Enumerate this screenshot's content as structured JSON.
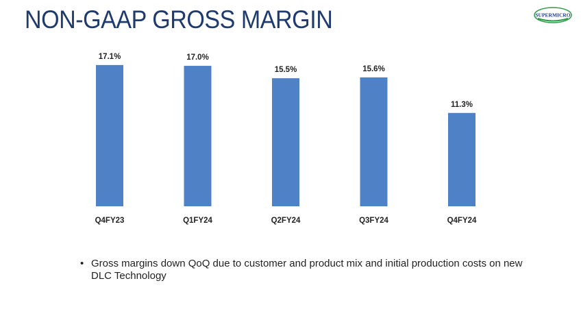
{
  "slide": {
    "title": "NON-GAAP GROSS MARGIN",
    "logo_text": "SUPERMICRO",
    "bullet_symbol": "•",
    "bullet_text": "Gross margins down QoQ due to customer and product mix and initial production costs on new DLC Technology"
  },
  "colors": {
    "title": "#1f3b6e",
    "bar": "#4f81c7",
    "logo_green": "#2e9b48",
    "logo_blue": "#1f3b8e"
  },
  "chart_data": {
    "type": "bar",
    "categories": [
      "Q4FY23",
      "Q1FY24",
      "Q2FY24",
      "Q3FY24",
      "Q4FY24"
    ],
    "values": [
      17.1,
      17.0,
      15.5,
      15.6,
      11.3
    ],
    "data_labels": [
      "17.1%",
      "17.0%",
      "15.5%",
      "15.6%",
      "11.3%"
    ],
    "ylim": [
      0,
      18
    ],
    "grid": false,
    "legend": "none"
  }
}
